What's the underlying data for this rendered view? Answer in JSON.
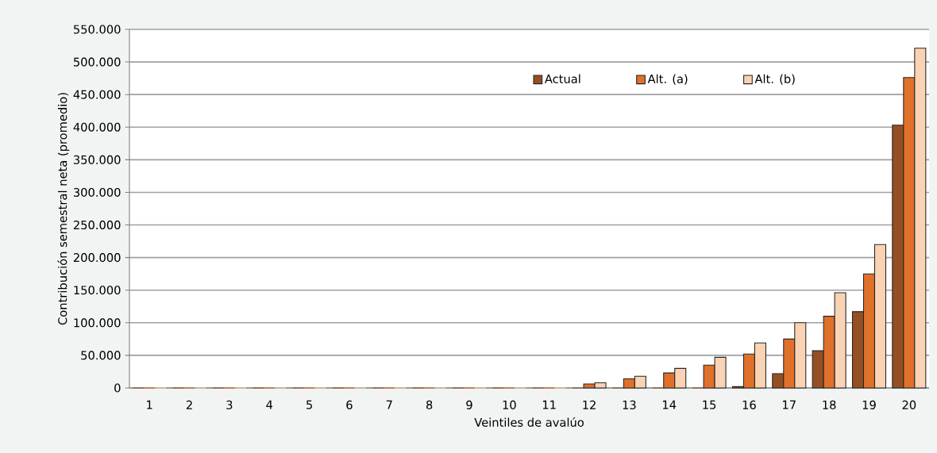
{
  "chart_data": {
    "type": "bar",
    "xlabel": "Veintiles de avalúo",
    "ylabel": "Contribución semestral neta (promedio)",
    "categories": [
      "1",
      "2",
      "3",
      "4",
      "5",
      "6",
      "7",
      "8",
      "9",
      "10",
      "11",
      "12",
      "13",
      "14",
      "15",
      "16",
      "17",
      "18",
      "19",
      "20"
    ],
    "series": [
      {
        "name": "Actual",
        "color": "#954f22",
        "values": [
          0,
          0,
          0,
          0,
          0,
          0,
          0,
          0,
          0,
          0,
          0,
          0,
          0,
          0,
          0,
          2000,
          22000,
          57000,
          117000,
          403000
        ]
      },
      {
        "name": "Alt. (a)",
        "color": "#e0702a",
        "values": [
          0,
          0,
          0,
          0,
          0,
          0,
          0,
          0,
          0,
          0,
          0,
          6000,
          14000,
          23000,
          35000,
          52000,
          75000,
          110000,
          175000,
          476000
        ]
      },
      {
        "name": "Alt. (b)",
        "color": "#f9d3b3",
        "values": [
          0,
          0,
          0,
          0,
          0,
          0,
          0,
          0,
          0,
          0,
          0,
          8000,
          18000,
          30000,
          47000,
          69000,
          100000,
          146000,
          220000,
          521000
        ]
      }
    ],
    "ylim": [
      0,
      550000
    ],
    "yticks": [
      0,
      {
        "value": 50000,
        "label": "50.000"
      },
      {
        "value": 100000,
        "label": "100.000"
      },
      {
        "value": 150000,
        "label": "150.000"
      },
      {
        "value": 200000,
        "label": "200.000"
      },
      {
        "value": 250000,
        "label": "250.000"
      },
      {
        "value": 300000,
        "label": "300.000"
      },
      {
        "value": 350000,
        "label": "350.000"
      },
      {
        "value": 400000,
        "label": "400.000"
      },
      {
        "value": 450000,
        "label": "450.000"
      },
      {
        "value": 500000,
        "label": "500.000"
      },
      {
        "value": 550000,
        "label": "550.000"
      }
    ],
    "grid": "y",
    "legend": "top right"
  }
}
